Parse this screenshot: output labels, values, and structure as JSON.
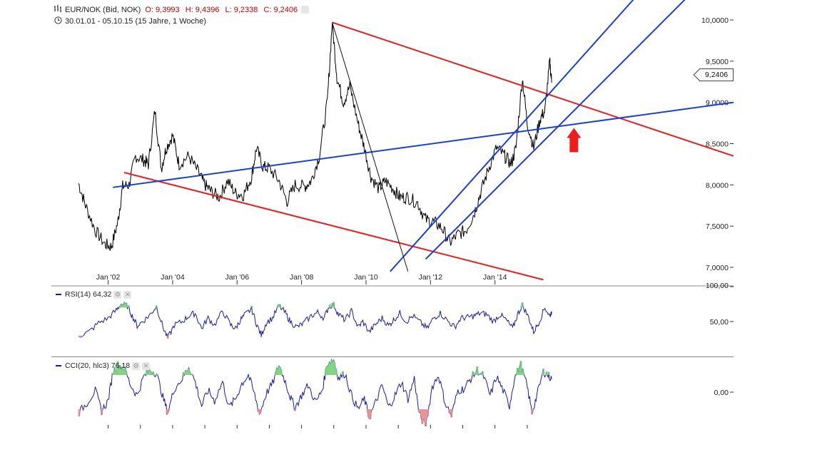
{
  "header": {
    "symbol": "EUR/NOK (Bid, NOK)",
    "open": "O: 9,3993",
    "high": "H: 9,4396",
    "low": "L: 9,2338",
    "close": "C: 9,2406",
    "range": "30.01.01 - 05.10.15 (15 Jahre, 1 Woche)"
  },
  "last_price_tag": "9,2406",
  "rsi": {
    "label": "RSI(14)",
    "value": "64,32"
  },
  "cci": {
    "label": "CCI(20, hlc3)",
    "value": "76,18"
  },
  "colors": {
    "price": "#000000",
    "trend_red": "#ee1c1c",
    "trend_blue": "#1a3fe0",
    "indicator": "#1a1aaa",
    "arrow": "#ee1c1c"
  },
  "chart_data": [
    {
      "type": "line",
      "title": "EUR/NOK (Bid, NOK)",
      "x_ticks": [
        "Jan '02",
        "Jan '04",
        "Jan '06",
        "Jan '08",
        "Jan '10",
        "Jan '12",
        "Jan '14"
      ],
      "y_ticks": [
        "10,0000",
        "9,5000",
        "9,0000",
        "8,5000",
        "8,0000",
        "7,5000",
        "7,0000"
      ],
      "y_range": [
        6.95,
        10.05
      ],
      "series": [
        {
          "points": [
            [
              2001.08,
              8.02
            ],
            [
              2001.3,
              7.75
            ],
            [
              2001.6,
              7.45
            ],
            [
              2001.9,
              7.28
            ],
            [
              2002.1,
              7.25
            ],
            [
              2002.3,
              7.55
            ],
            [
              2002.45,
              7.98
            ],
            [
              2002.65,
              8.0
            ],
            [
              2002.85,
              8.35
            ],
            [
              2003.1,
              8.3
            ],
            [
              2003.25,
              8.25
            ],
            [
              2003.45,
              8.9
            ],
            [
              2003.65,
              8.2
            ],
            [
              2003.8,
              8.45
            ],
            [
              2004.0,
              8.6
            ],
            [
              2004.2,
              8.25
            ],
            [
              2004.5,
              8.35
            ],
            [
              2004.8,
              8.15
            ],
            [
              2005.0,
              8.0
            ],
            [
              2005.2,
              7.92
            ],
            [
              2005.45,
              7.85
            ],
            [
              2005.7,
              8.05
            ],
            [
              2005.95,
              7.9
            ],
            [
              2006.2,
              7.88
            ],
            [
              2006.45,
              8.1
            ],
            [
              2006.6,
              8.45
            ],
            [
              2006.8,
              8.22
            ],
            [
              2007.0,
              8.2
            ],
            [
              2007.3,
              8.05
            ],
            [
              2007.55,
              7.8
            ],
            [
              2007.8,
              8.0
            ],
            [
              2008.1,
              7.98
            ],
            [
              2008.3,
              8.05
            ],
            [
              2008.55,
              8.35
            ],
            [
              2008.8,
              9.0
            ],
            [
              2008.95,
              9.97
            ],
            [
              2009.1,
              9.3
            ],
            [
              2009.3,
              9.0
            ],
            [
              2009.5,
              9.2
            ],
            [
              2009.75,
              8.75
            ],
            [
              2009.95,
              8.45
            ],
            [
              2010.15,
              8.1
            ],
            [
              2010.4,
              7.95
            ],
            [
              2010.6,
              8.05
            ],
            [
              2010.85,
              7.95
            ],
            [
              2011.05,
              7.85
            ],
            [
              2011.3,
              7.85
            ],
            [
              2011.6,
              7.78
            ],
            [
              2011.85,
              7.58
            ],
            [
              2012.1,
              7.55
            ],
            [
              2012.35,
              7.48
            ],
            [
              2012.6,
              7.3
            ],
            [
              2012.85,
              7.4
            ],
            [
              2013.1,
              7.45
            ],
            [
              2013.35,
              7.65
            ],
            [
              2013.55,
              7.9
            ],
            [
              2013.8,
              8.2
            ],
            [
              2014.05,
              8.45
            ],
            [
              2014.3,
              8.35
            ],
            [
              2014.5,
              8.25
            ],
            [
              2014.65,
              8.45
            ],
            [
              2014.85,
              9.3
            ],
            [
              2015.0,
              8.75
            ],
            [
              2015.2,
              8.45
            ],
            [
              2015.4,
              8.8
            ],
            [
              2015.55,
              8.9
            ],
            [
              2015.7,
              9.5
            ],
            [
              2015.76,
              9.24
            ]
          ]
        }
      ],
      "annotations": [
        {
          "type": "trendline",
          "color": "red",
          "from": [
            2008.95,
            9.97
          ],
          "to": [
            2021.4,
            8.35
          ]
        },
        {
          "type": "trendline",
          "color": "red",
          "from": [
            2002.5,
            8.15
          ],
          "to": [
            2015.5,
            6.85
          ]
        },
        {
          "type": "trendline",
          "color": "blue",
          "from": [
            2002.15,
            7.97
          ],
          "to": [
            2021.4,
            9.0
          ]
        },
        {
          "type": "trendline",
          "color": "blue",
          "from": [
            2010.75,
            6.95
          ],
          "to": [
            2018.3,
            10.25
          ]
        },
        {
          "type": "trendline",
          "color": "blue",
          "from": [
            2011.85,
            7.1
          ],
          "to": [
            2019.9,
            10.25
          ]
        },
        {
          "type": "trendline",
          "color": "black",
          "from": [
            2008.95,
            9.97
          ],
          "to": [
            2011.3,
            6.95
          ]
        },
        {
          "type": "arrow",
          "color": "red",
          "direction": "up",
          "at": [
            2016.45,
            8.5
          ]
        }
      ]
    },
    {
      "type": "line",
      "title": "RSI(14)",
      "y_ticks": [
        "100,00",
        "50,00"
      ],
      "y_range": [
        0,
        100
      ],
      "overbought": 70,
      "oversold": 30,
      "series": [
        {
          "name": "RSI(14)",
          "points": [
            [
              2001.1,
              30
            ],
            [
              2001.4,
              35
            ],
            [
              2001.7,
              48
            ],
            [
              2002.0,
              55
            ],
            [
              2002.25,
              66
            ],
            [
              2002.4,
              75
            ],
            [
              2002.6,
              72
            ],
            [
              2002.75,
              58
            ],
            [
              2002.9,
              44
            ],
            [
              2003.1,
              51
            ],
            [
              2003.3,
              60
            ],
            [
              2003.5,
              72
            ],
            [
              2003.7,
              42
            ],
            [
              2003.85,
              26
            ],
            [
              2004.05,
              45
            ],
            [
              2004.3,
              50
            ],
            [
              2004.5,
              58
            ],
            [
              2004.7,
              62
            ],
            [
              2004.9,
              40
            ],
            [
              2005.1,
              55
            ],
            [
              2005.3,
              45
            ],
            [
              2005.55,
              65
            ],
            [
              2005.8,
              45
            ],
            [
              2005.95,
              40
            ],
            [
              2006.1,
              52
            ],
            [
              2006.25,
              60
            ],
            [
              2006.45,
              68
            ],
            [
              2006.6,
              47
            ],
            [
              2006.75,
              30
            ],
            [
              2006.9,
              48
            ],
            [
              2007.1,
              55
            ],
            [
              2007.3,
              73
            ],
            [
              2007.5,
              62
            ],
            [
              2007.65,
              50
            ],
            [
              2007.85,
              42
            ],
            [
              2008.05,
              47
            ],
            [
              2008.3,
              58
            ],
            [
              2008.5,
              63
            ],
            [
              2008.7,
              55
            ],
            [
              2008.85,
              72
            ],
            [
              2009.0,
              74
            ],
            [
              2009.15,
              60
            ],
            [
              2009.35,
              52
            ],
            [
              2009.55,
              65
            ],
            [
              2009.75,
              42
            ],
            [
              2009.9,
              50
            ],
            [
              2010.1,
              35
            ],
            [
              2010.3,
              46
            ],
            [
              2010.5,
              55
            ],
            [
              2010.7,
              44
            ],
            [
              2010.85,
              52
            ],
            [
              2011.05,
              62
            ],
            [
              2011.25,
              50
            ],
            [
              2011.45,
              58
            ],
            [
              2011.7,
              48
            ],
            [
              2011.9,
              40
            ],
            [
              2012.1,
              55
            ],
            [
              2012.3,
              62
            ],
            [
              2012.55,
              50
            ],
            [
              2012.75,
              42
            ],
            [
              2012.95,
              55
            ],
            [
              2013.15,
              56
            ],
            [
              2013.35,
              58
            ],
            [
              2013.55,
              62
            ],
            [
              2013.75,
              60
            ],
            [
              2013.95,
              50
            ],
            [
              2014.15,
              60
            ],
            [
              2014.35,
              52
            ],
            [
              2014.55,
              40
            ],
            [
              2014.7,
              60
            ],
            [
              2014.85,
              74
            ],
            [
              2015.05,
              55
            ],
            [
              2015.2,
              35
            ],
            [
              2015.35,
              48
            ],
            [
              2015.55,
              70
            ],
            [
              2015.7,
              58
            ],
            [
              2015.76,
              64.32
            ]
          ]
        }
      ]
    },
    {
      "type": "line",
      "title": "CCI(20, hlc3)",
      "y_ticks": [
        "0,00"
      ],
      "y_range": [
        -250,
        250
      ],
      "series": [
        {
          "name": "CCI(20, hlc3)",
          "points": [
            [
              2001.1,
              -120
            ],
            [
              2001.35,
              -60
            ],
            [
              2001.6,
              10
            ],
            [
              2001.8,
              -110
            ],
            [
              2002.0,
              -50
            ],
            [
              2002.15,
              120
            ],
            [
              2002.3,
              160
            ],
            [
              2002.5,
              140
            ],
            [
              2002.7,
              40
            ],
            [
              2002.9,
              -20
            ],
            [
              2003.1,
              90
            ],
            [
              2003.3,
              130
            ],
            [
              2003.5,
              110
            ],
            [
              2003.7,
              -30
            ],
            [
              2003.85,
              -120
            ],
            [
              2004.05,
              20
            ],
            [
              2004.3,
              80
            ],
            [
              2004.5,
              150
            ],
            [
              2004.7,
              60
            ],
            [
              2004.9,
              -80
            ],
            [
              2005.1,
              10
            ],
            [
              2005.3,
              -50
            ],
            [
              2005.55,
              60
            ],
            [
              2005.75,
              -90
            ],
            [
              2005.95,
              -40
            ],
            [
              2006.15,
              50
            ],
            [
              2006.35,
              100
            ],
            [
              2006.55,
              -20
            ],
            [
              2006.7,
              -130
            ],
            [
              2006.9,
              -10
            ],
            [
              2007.1,
              50
            ],
            [
              2007.3,
              160
            ],
            [
              2007.5,
              60
            ],
            [
              2007.65,
              -30
            ],
            [
              2007.8,
              -90
            ],
            [
              2008.0,
              -20
            ],
            [
              2008.2,
              40
            ],
            [
              2008.45,
              -60
            ],
            [
              2008.65,
              20
            ],
            [
              2008.8,
              170
            ],
            [
              2009.0,
              190
            ],
            [
              2009.15,
              80
            ],
            [
              2009.35,
              110
            ],
            [
              2009.55,
              -20
            ],
            [
              2009.75,
              -100
            ],
            [
              2009.95,
              -40
            ],
            [
              2010.1,
              -150
            ],
            [
              2010.3,
              -60
            ],
            [
              2010.5,
              40
            ],
            [
              2010.7,
              -90
            ],
            [
              2010.9,
              -20
            ],
            [
              2011.1,
              60
            ],
            [
              2011.3,
              -40
            ],
            [
              2011.5,
              80
            ],
            [
              2011.65,
              -130
            ],
            [
              2011.85,
              -200
            ],
            [
              2012.05,
              30
            ],
            [
              2012.25,
              100
            ],
            [
              2012.45,
              -60
            ],
            [
              2012.65,
              -140
            ],
            [
              2012.85,
              10
            ],
            [
              2013.05,
              20
            ],
            [
              2013.25,
              80
            ],
            [
              2013.45,
              130
            ],
            [
              2013.65,
              90
            ],
            [
              2013.85,
              -20
            ],
            [
              2014.05,
              90
            ],
            [
              2014.25,
              10
            ],
            [
              2014.45,
              -80
            ],
            [
              2014.6,
              80
            ],
            [
              2014.8,
              160
            ],
            [
              2015.0,
              30
            ],
            [
              2015.15,
              -120
            ],
            [
              2015.3,
              -20
            ],
            [
              2015.5,
              120
            ],
            [
              2015.65,
              100
            ],
            [
              2015.76,
              76.18
            ]
          ]
        }
      ]
    }
  ]
}
